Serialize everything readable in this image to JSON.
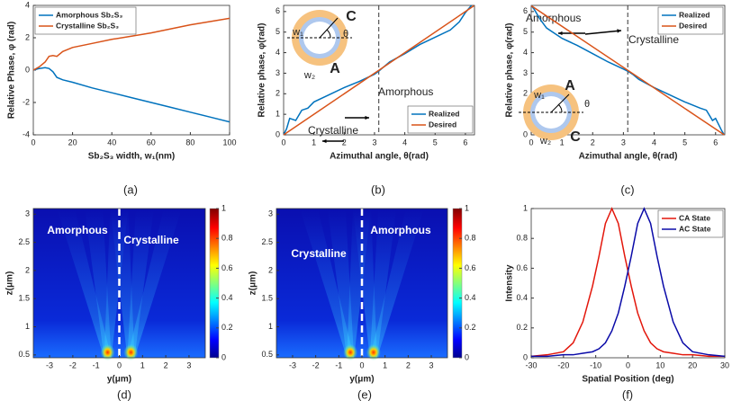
{
  "chart_data": [
    {
      "type": "line",
      "caption": "(a)",
      "xlabel": "Sb₂S₃ width, w₁(nm)",
      "ylabel": "Relative Phase, φ (rad)",
      "xlim": [
        0,
        100
      ],
      "ylim": [
        -4,
        4
      ],
      "xticks": [
        0,
        20,
        40,
        60,
        80,
        100
      ],
      "yticks": [
        -4,
        -2,
        0,
        2,
        4
      ],
      "legend": "upper left",
      "series": [
        {
          "name": "Amorphous Sb₂S₃",
          "color": "#0072bd",
          "x": [
            0,
            3,
            6,
            8,
            10,
            12,
            15,
            20,
            30,
            40,
            50,
            60,
            70,
            80,
            90,
            100
          ],
          "values": [
            0,
            0.1,
            0.15,
            0.1,
            -0.1,
            -0.45,
            -0.6,
            -0.75,
            -1.1,
            -1.4,
            -1.7,
            -2.0,
            -2.3,
            -2.6,
            -2.9,
            -3.2
          ]
        },
        {
          "name": "Crystalline Sb₂S₃",
          "color": "#d95319",
          "x": [
            0,
            3,
            6,
            8,
            10,
            12,
            15,
            20,
            30,
            40,
            50,
            60,
            70,
            80,
            90,
            100
          ],
          "values": [
            0,
            0.2,
            0.5,
            0.85,
            0.9,
            0.85,
            1.15,
            1.4,
            1.65,
            1.9,
            2.1,
            2.3,
            2.55,
            2.8,
            3.0,
            3.2
          ]
        }
      ]
    },
    {
      "type": "line",
      "caption": "(b)",
      "xlabel": "Azimuthal angle, θ(rad)",
      "ylabel": "Relative phase, φ(rad)",
      "xlim": [
        0,
        6.3
      ],
      "ylim": [
        0,
        6.3
      ],
      "xticks": [
        0,
        1,
        2,
        3,
        4,
        5,
        6
      ],
      "yticks": [
        0,
        1,
        2,
        3,
        4,
        5,
        6
      ],
      "legend": "lower right",
      "divider": 3.1416,
      "annotations": [
        "Amorphous",
        "Crystalline"
      ],
      "inset_labels": [
        "C",
        "A",
        "w₁",
        "w₂",
        "θ"
      ],
      "series": [
        {
          "name": "Realized",
          "color": "#0072bd",
          "x": [
            0,
            0.1,
            0.2,
            0.4,
            0.6,
            0.8,
            1.0,
            1.5,
            2.0,
            2.5,
            3.0,
            3.14,
            3.3,
            3.5,
            4.0,
            4.5,
            5.0,
            5.5,
            5.8,
            6.0,
            6.2
          ],
          "values": [
            0,
            0.3,
            0.8,
            0.7,
            1.2,
            1.3,
            1.6,
            1.95,
            2.3,
            2.6,
            2.95,
            3.1,
            3.3,
            3.55,
            3.95,
            4.4,
            4.75,
            5.1,
            5.5,
            5.95,
            6.3
          ]
        },
        {
          "name": "Desired",
          "color": "#d95319",
          "x": [
            0,
            6.283
          ],
          "values": [
            0,
            6.283
          ]
        }
      ]
    },
    {
      "type": "line",
      "caption": "(c)",
      "xlabel": "Azimuthal angle, θ(rad)",
      "ylabel": "Relative phase, φ(rad)",
      "xlim": [
        0,
        6.3
      ],
      "ylim": [
        0,
        6.3
      ],
      "xticks": [
        0,
        1,
        2,
        3,
        4,
        5,
        6
      ],
      "yticks": [
        0,
        1,
        2,
        3,
        4,
        5,
        6
      ],
      "legend": "upper right",
      "divider": 3.1416,
      "annotations": [
        "Amorphous",
        "Crystalline"
      ],
      "inset_labels": [
        "A",
        "C",
        "w₁",
        "w₂",
        "θ"
      ],
      "series": [
        {
          "name": "Realized",
          "color": "#0072bd",
          "x": [
            0,
            0.1,
            0.3,
            0.5,
            1.0,
            1.5,
            2.0,
            2.5,
            3.0,
            3.14,
            3.3,
            3.5,
            4.0,
            4.5,
            5.0,
            5.5,
            5.7,
            5.9,
            6.0,
            6.1,
            6.2,
            6.28
          ],
          "values": [
            6.3,
            6.1,
            5.6,
            5.2,
            4.7,
            4.35,
            3.95,
            3.55,
            3.2,
            3.1,
            2.95,
            2.7,
            2.3,
            1.95,
            1.6,
            1.3,
            1.2,
            0.7,
            0.8,
            0.5,
            0.2,
            0
          ]
        },
        {
          "name": "Desired",
          "color": "#d95319",
          "x": [
            0,
            6.283
          ],
          "values": [
            6.283,
            0
          ]
        }
      ]
    },
    {
      "type": "heatmap",
      "caption": "(d)",
      "xlabel": "y(μm)",
      "ylabel": "z(μm)",
      "xlim": [
        -3.7,
        3.7
      ],
      "ylim": [
        0.45,
        3.1
      ],
      "xticks": [
        -3,
        -2,
        -1,
        0,
        1,
        2,
        3
      ],
      "yticks": [
        0.5,
        1,
        1.5,
        2,
        2.5,
        3
      ],
      "clim": [
        0,
        1
      ],
      "cticks": [
        0,
        0.2,
        0.4,
        0.6,
        0.8,
        1
      ],
      "divider": 0,
      "annotations": [
        "Amorphous",
        "Crystalline"
      ]
    },
    {
      "type": "heatmap",
      "caption": "(e)",
      "xlabel": "y(μm)",
      "ylabel": "z(μm)",
      "xlim": [
        -3.7,
        3.7
      ],
      "ylim": [
        0.45,
        3.1
      ],
      "xticks": [
        -3,
        -2,
        -1,
        0,
        1,
        2,
        3
      ],
      "yticks": [
        0.5,
        1,
        1.5,
        2,
        2.5,
        3
      ],
      "clim": [
        0,
        1
      ],
      "cticks": [
        0,
        0.2,
        0.4,
        0.6,
        0.8,
        1
      ],
      "divider": 0,
      "annotations": [
        "Crystalline",
        "Amorphous"
      ]
    },
    {
      "type": "line",
      "caption": "(f)",
      "xlabel": "Spatial Position (deg)",
      "ylabel": "Intensity",
      "xlim": [
        -30,
        30
      ],
      "ylim": [
        0,
        1
      ],
      "xticks": [
        -30,
        -20,
        -10,
        0,
        10,
        20,
        30
      ],
      "yticks": [
        0,
        0.2,
        0.4,
        0.6,
        0.8,
        1
      ],
      "legend": "upper right",
      "x": [
        -30,
        -25,
        -20,
        -17,
        -14,
        -11,
        -9,
        -7,
        -5,
        -3,
        -1,
        1,
        3,
        5,
        7,
        9,
        11,
        14,
        17,
        20,
        25,
        30
      ],
      "series": [
        {
          "name": "CA State",
          "color": "#e3160b",
          "values": [
            0.01,
            0.02,
            0.04,
            0.1,
            0.24,
            0.48,
            0.68,
            0.9,
            1.0,
            0.9,
            0.68,
            0.48,
            0.3,
            0.18,
            0.1,
            0.06,
            0.04,
            0.03,
            0.02,
            0.02,
            0.01,
            0.01
          ]
        },
        {
          "name": "AC State",
          "color": "#0a0aa8",
          "values": [
            0.01,
            0.01,
            0.02,
            0.02,
            0.03,
            0.04,
            0.06,
            0.1,
            0.18,
            0.3,
            0.48,
            0.68,
            0.9,
            1.0,
            0.9,
            0.68,
            0.48,
            0.24,
            0.1,
            0.04,
            0.02,
            0.01
          ]
        }
      ]
    }
  ]
}
